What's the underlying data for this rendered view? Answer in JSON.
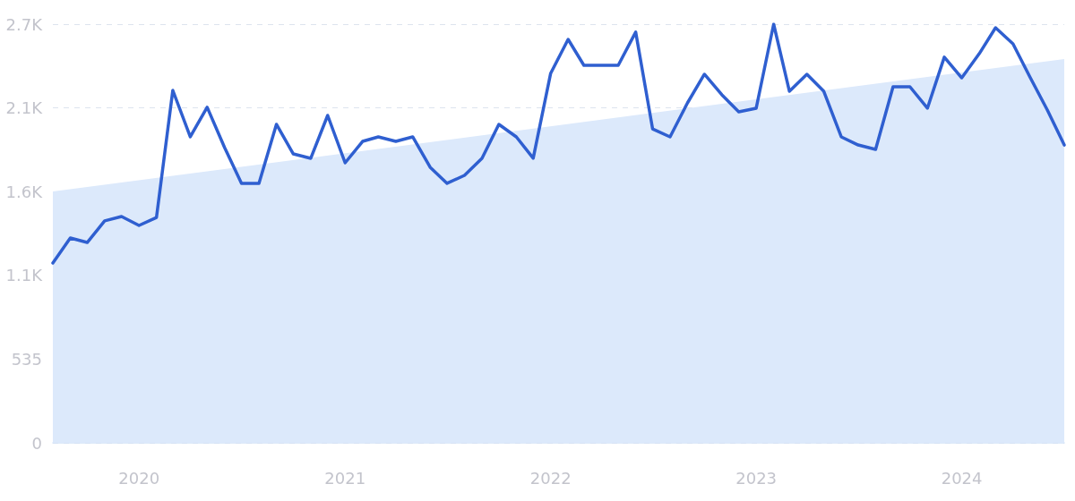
{
  "chart_data": {
    "type": "line",
    "x": [
      "2019-08",
      "2019-09",
      "2019-10",
      "2019-11",
      "2019-12",
      "2020-01",
      "2020-02",
      "2020-03",
      "2020-04",
      "2020-05",
      "2020-06",
      "2020-07",
      "2020-08",
      "2020-09",
      "2020-10",
      "2020-11",
      "2020-12",
      "2021-01",
      "2021-02",
      "2021-03",
      "2021-04",
      "2021-05",
      "2021-06",
      "2021-07",
      "2021-08",
      "2021-09",
      "2021-10",
      "2021-11",
      "2021-12",
      "2022-01",
      "2022-02",
      "2022-03",
      "2022-04",
      "2022-05",
      "2022-06",
      "2022-07",
      "2022-08",
      "2022-09",
      "2022-10",
      "2022-11",
      "2022-12",
      "2023-01",
      "2023-02",
      "2023-03",
      "2023-04",
      "2023-05",
      "2023-06",
      "2023-07",
      "2023-08",
      "2023-09",
      "2023-10",
      "2023-11",
      "2023-12",
      "2024-01",
      "2024-02",
      "2024-03",
      "2024-04",
      "2024-05",
      "2024-06",
      "2024-07"
    ],
    "series": [
      {
        "type": "area",
        "x": [
          "2019-08",
          "2024-07"
        ],
        "color": "#dce9fb",
        "values": [
          1606,
          2452
        ]
      },
      {
        "color": "#2f5fd0",
        "values": [
          1149,
          1309,
          1280,
          1418,
          1446,
          1389,
          1440,
          2252,
          1955,
          2144,
          1886,
          1658,
          1658,
          2035,
          1846,
          1818,
          2092,
          1789,
          1926,
          1955,
          1926,
          1955,
          1761,
          1658,
          1709,
          1818,
          2035,
          1955,
          1818,
          2361,
          2578,
          2412,
          2412,
          2412,
          2624,
          2006,
          1955,
          2172,
          2355,
          2224,
          2115,
          2138,
          2675,
          2246,
          2355,
          2246,
          1955,
          1903,
          1875,
          2275,
          2275,
          2138,
          2464,
          2332,
          2486,
          2652,
          2549,
          2338,
          2126,
          1903
        ]
      }
    ],
    "xlim": [
      "2019-08",
      "2024-07"
    ],
    "xticks": [
      "2020",
      "2021",
      "2022",
      "2023",
      "2024"
    ],
    "ylim": [
      0,
      2675
    ],
    "yticks": [
      0,
      535,
      {
        "value": 1070,
        "label": "1.1K"
      },
      {
        "value": 1605,
        "label": "1.6K"
      },
      {
        "value": 2140,
        "label": "2.1K"
      },
      {
        "value": 2675,
        "label": "2.7K"
      }
    ],
    "grid": "y",
    "marker": "none",
    "line_style": "solid"
  }
}
